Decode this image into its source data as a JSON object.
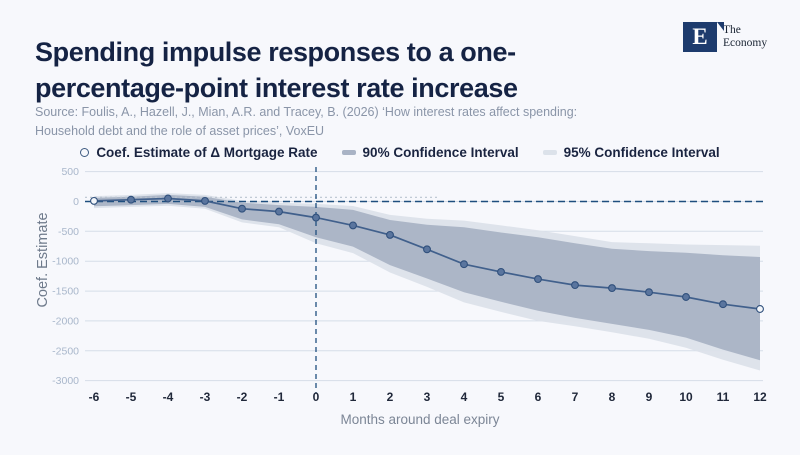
{
  "page": {
    "background": "#f7f8fc"
  },
  "header": {
    "title_lines": [
      "Spending impulse responses to a one-",
      "percentage-point interest rate increase"
    ],
    "logo": {
      "mark": "E",
      "name_line1": "The",
      "name_line2": "Economy"
    },
    "source_lines": [
      "Source: Foulis, A., Hazell, J., Mian, A.R. and Tracey, B. (2026) ‘How interest rates affect spending:",
      "Household debt and the role of asset prices’, VoxEU"
    ]
  },
  "legend": {
    "items": [
      {
        "label": "Coef. Estimate of Δ Mortgage Rate",
        "marker": "open-circle",
        "color": "#3d5a80"
      },
      {
        "label": "90% Confidence Interval",
        "marker": "band-swatch",
        "color": "#a9b3c5"
      },
      {
        "label": "95% Confidence Interval",
        "marker": "band-swatch",
        "color": "#dce2ea"
      }
    ]
  },
  "chart_data": {
    "type": "line",
    "xlabel": "Months around deal expiry",
    "ylabel": "Coef. Estimate",
    "x": [
      -6,
      -5,
      -4,
      -3,
      -2,
      -1,
      0,
      1,
      2,
      3,
      4,
      5,
      6,
      7,
      8,
      9,
      10,
      11,
      12
    ],
    "xtick_labels": [
      "-6",
      "-5",
      "-4",
      "-3",
      "-2",
      "-1",
      "0",
      "1",
      "2",
      "3",
      "4",
      "5",
      "6",
      "7",
      "8",
      "9",
      "10",
      "11",
      "12"
    ],
    "yticks": [
      500,
      0,
      -500,
      -1000,
      -1500,
      -2000,
      -2500,
      -3000
    ],
    "ylim": [
      -3000,
      500
    ],
    "grid": true,
    "legend_position": "top",
    "series": [
      {
        "name": "Coef. Estimate of Δ Mortgage Rate",
        "color": "#41608c",
        "values": [
          10,
          30,
          50,
          10,
          -120,
          -170,
          -270,
          -400,
          -560,
          -800,
          -1050,
          -1180,
          -1300,
          -1400,
          -1450,
          -1520,
          -1600,
          -1720,
          -1800
        ]
      }
    ],
    "bands": [
      {
        "name": "95% Confidence Interval",
        "color": "#dce2ea",
        "upper": [
          90,
          110,
          140,
          110,
          10,
          -20,
          -40,
          -75,
          -225,
          -290,
          -320,
          -400,
          -480,
          -580,
          -680,
          -700,
          -720,
          -730,
          -740
        ],
        "lower": [
          -110,
          -90,
          -70,
          -120,
          -350,
          -430,
          -700,
          -865,
          -1190,
          -1430,
          -1690,
          -1850,
          -2000,
          -2090,
          -2190,
          -2300,
          -2450,
          -2650,
          -2830
        ]
      },
      {
        "name": "90% Confidence Interval",
        "color": "#a9b3c5",
        "upper": [
          60,
          80,
          110,
          80,
          -20,
          -60,
          -90,
          -140,
          -310,
          -390,
          -430,
          -520,
          -600,
          -700,
          -790,
          -830,
          -860,
          -900,
          -930
        ],
        "lower": [
          -80,
          -60,
          -40,
          -90,
          -300,
          -380,
          -600,
          -755,
          -1065,
          -1290,
          -1520,
          -1680,
          -1830,
          -1950,
          -2050,
          -2150,
          -2280,
          -2480,
          -2660
        ]
      }
    ],
    "reference_lines": {
      "horizontal_dashed_y": 0,
      "vertical_dashed_x": 0,
      "gray_dotted_y": 70
    }
  }
}
